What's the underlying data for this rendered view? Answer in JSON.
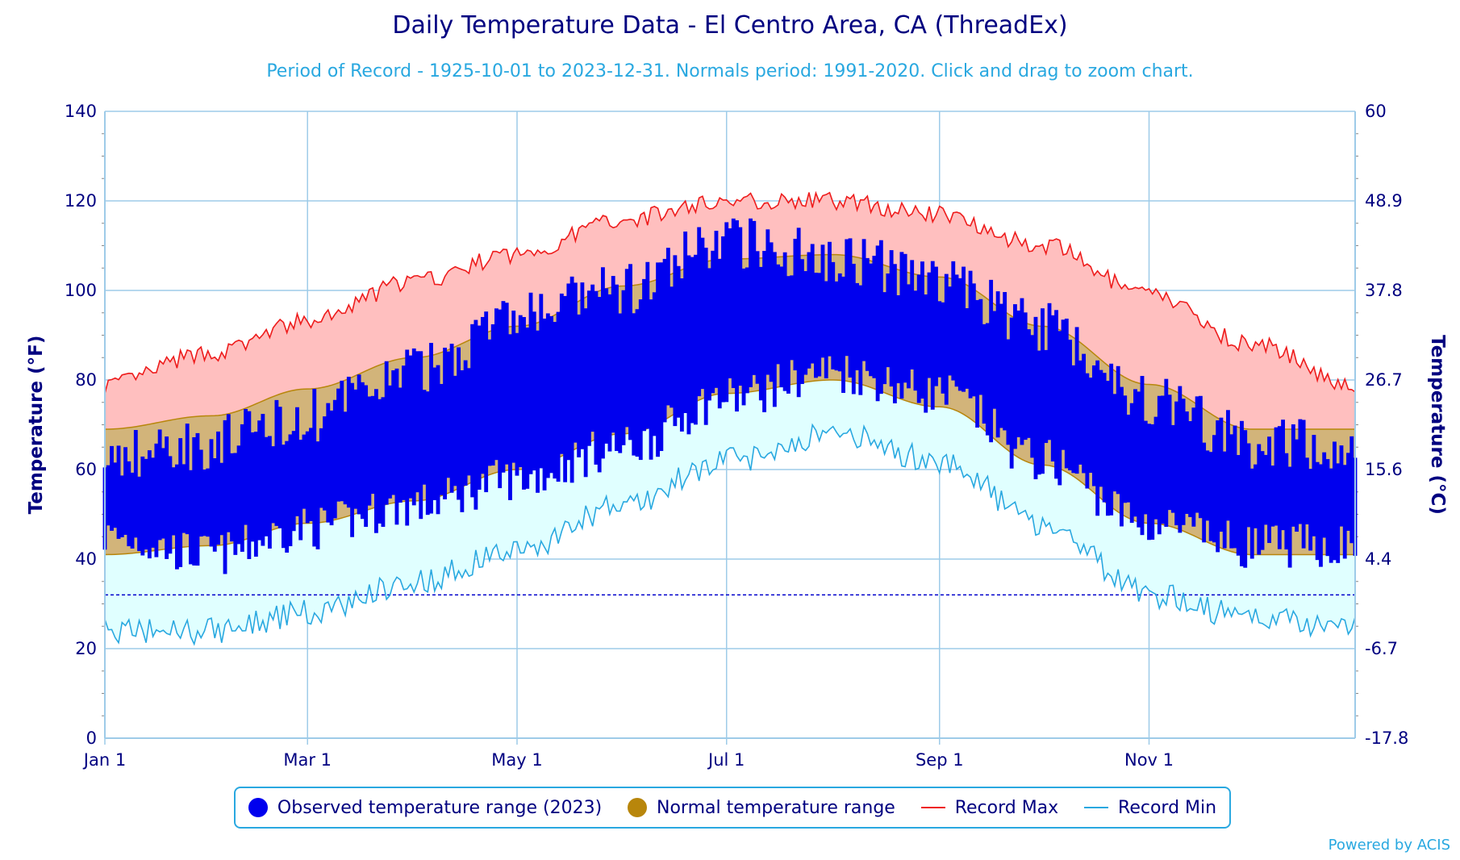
{
  "header": {
    "title": "Daily Temperature Data - El Centro Area, CA (ThreadEx)",
    "subtitle": "Period of Record - 1925-10-01 to 2023-12-31. Normals period: 1991-2020. Click and drag to zoom chart."
  },
  "legend": {
    "observed": "Observed temperature range (2023)",
    "normal": "Normal temperature range",
    "record_max": "Record Max",
    "record_min": "Record Min"
  },
  "credit": "Powered by ACIS",
  "colors": {
    "observed": "#0000ee",
    "normal_fill": "#d2b47a",
    "normal_line": "#b8860b",
    "record_max": "#ee1c1c",
    "record_max_fill": "#ffbfbf",
    "record_min": "#29a8e0",
    "record_min_fill": "#e0ffff",
    "freeze_line": "#0000cc",
    "axis_text": "#000080",
    "grid": "#9ecbe8"
  },
  "chart_data": {
    "type": "area",
    "x_range": [
      "Jan 1",
      "Dec 31"
    ],
    "x_ticks": [
      "Jan 1",
      "Mar 1",
      "May 1",
      "Jul 1",
      "Sep 1",
      "Nov 1"
    ],
    "y_left": {
      "label": "Temperature (°F)",
      "range": [
        0,
        140
      ],
      "ticks": [
        0,
        20,
        40,
        60,
        80,
        100,
        120,
        140
      ]
    },
    "y_right": {
      "label": "Temperature (°C)",
      "ticks": [
        "-17.8",
        "-6.7",
        "4.4",
        "15.6",
        "26.7",
        "37.8",
        "48.9",
        "60"
      ]
    },
    "freezing_line_f": 32,
    "record_max_monthly_f": [
      79,
      86,
      93,
      102,
      108,
      116,
      120,
      120,
      117,
      110,
      99,
      88,
      79
    ],
    "record_min_monthly_f": [
      24,
      24,
      28,
      35,
      42,
      52,
      62,
      68,
      62,
      48,
      32,
      27,
      25
    ],
    "normal_high_monthly_f": [
      69,
      72,
      78,
      85,
      92,
      101,
      107,
      108,
      103,
      92,
      79,
      69,
      69
    ],
    "normal_low_monthly_f": [
      41,
      43,
      48,
      53,
      60,
      68,
      77,
      80,
      74,
      61,
      48,
      41,
      41
    ],
    "observed_2023_monthly_f": {
      "high": [
        63,
        66,
        72,
        82,
        94,
        100,
        111,
        108,
        102,
        92,
        76,
        66,
        65
      ],
      "low": [
        45,
        41,
        47,
        52,
        58,
        65,
        76,
        82,
        77,
        62,
        48,
        43,
        43
      ]
    }
  }
}
